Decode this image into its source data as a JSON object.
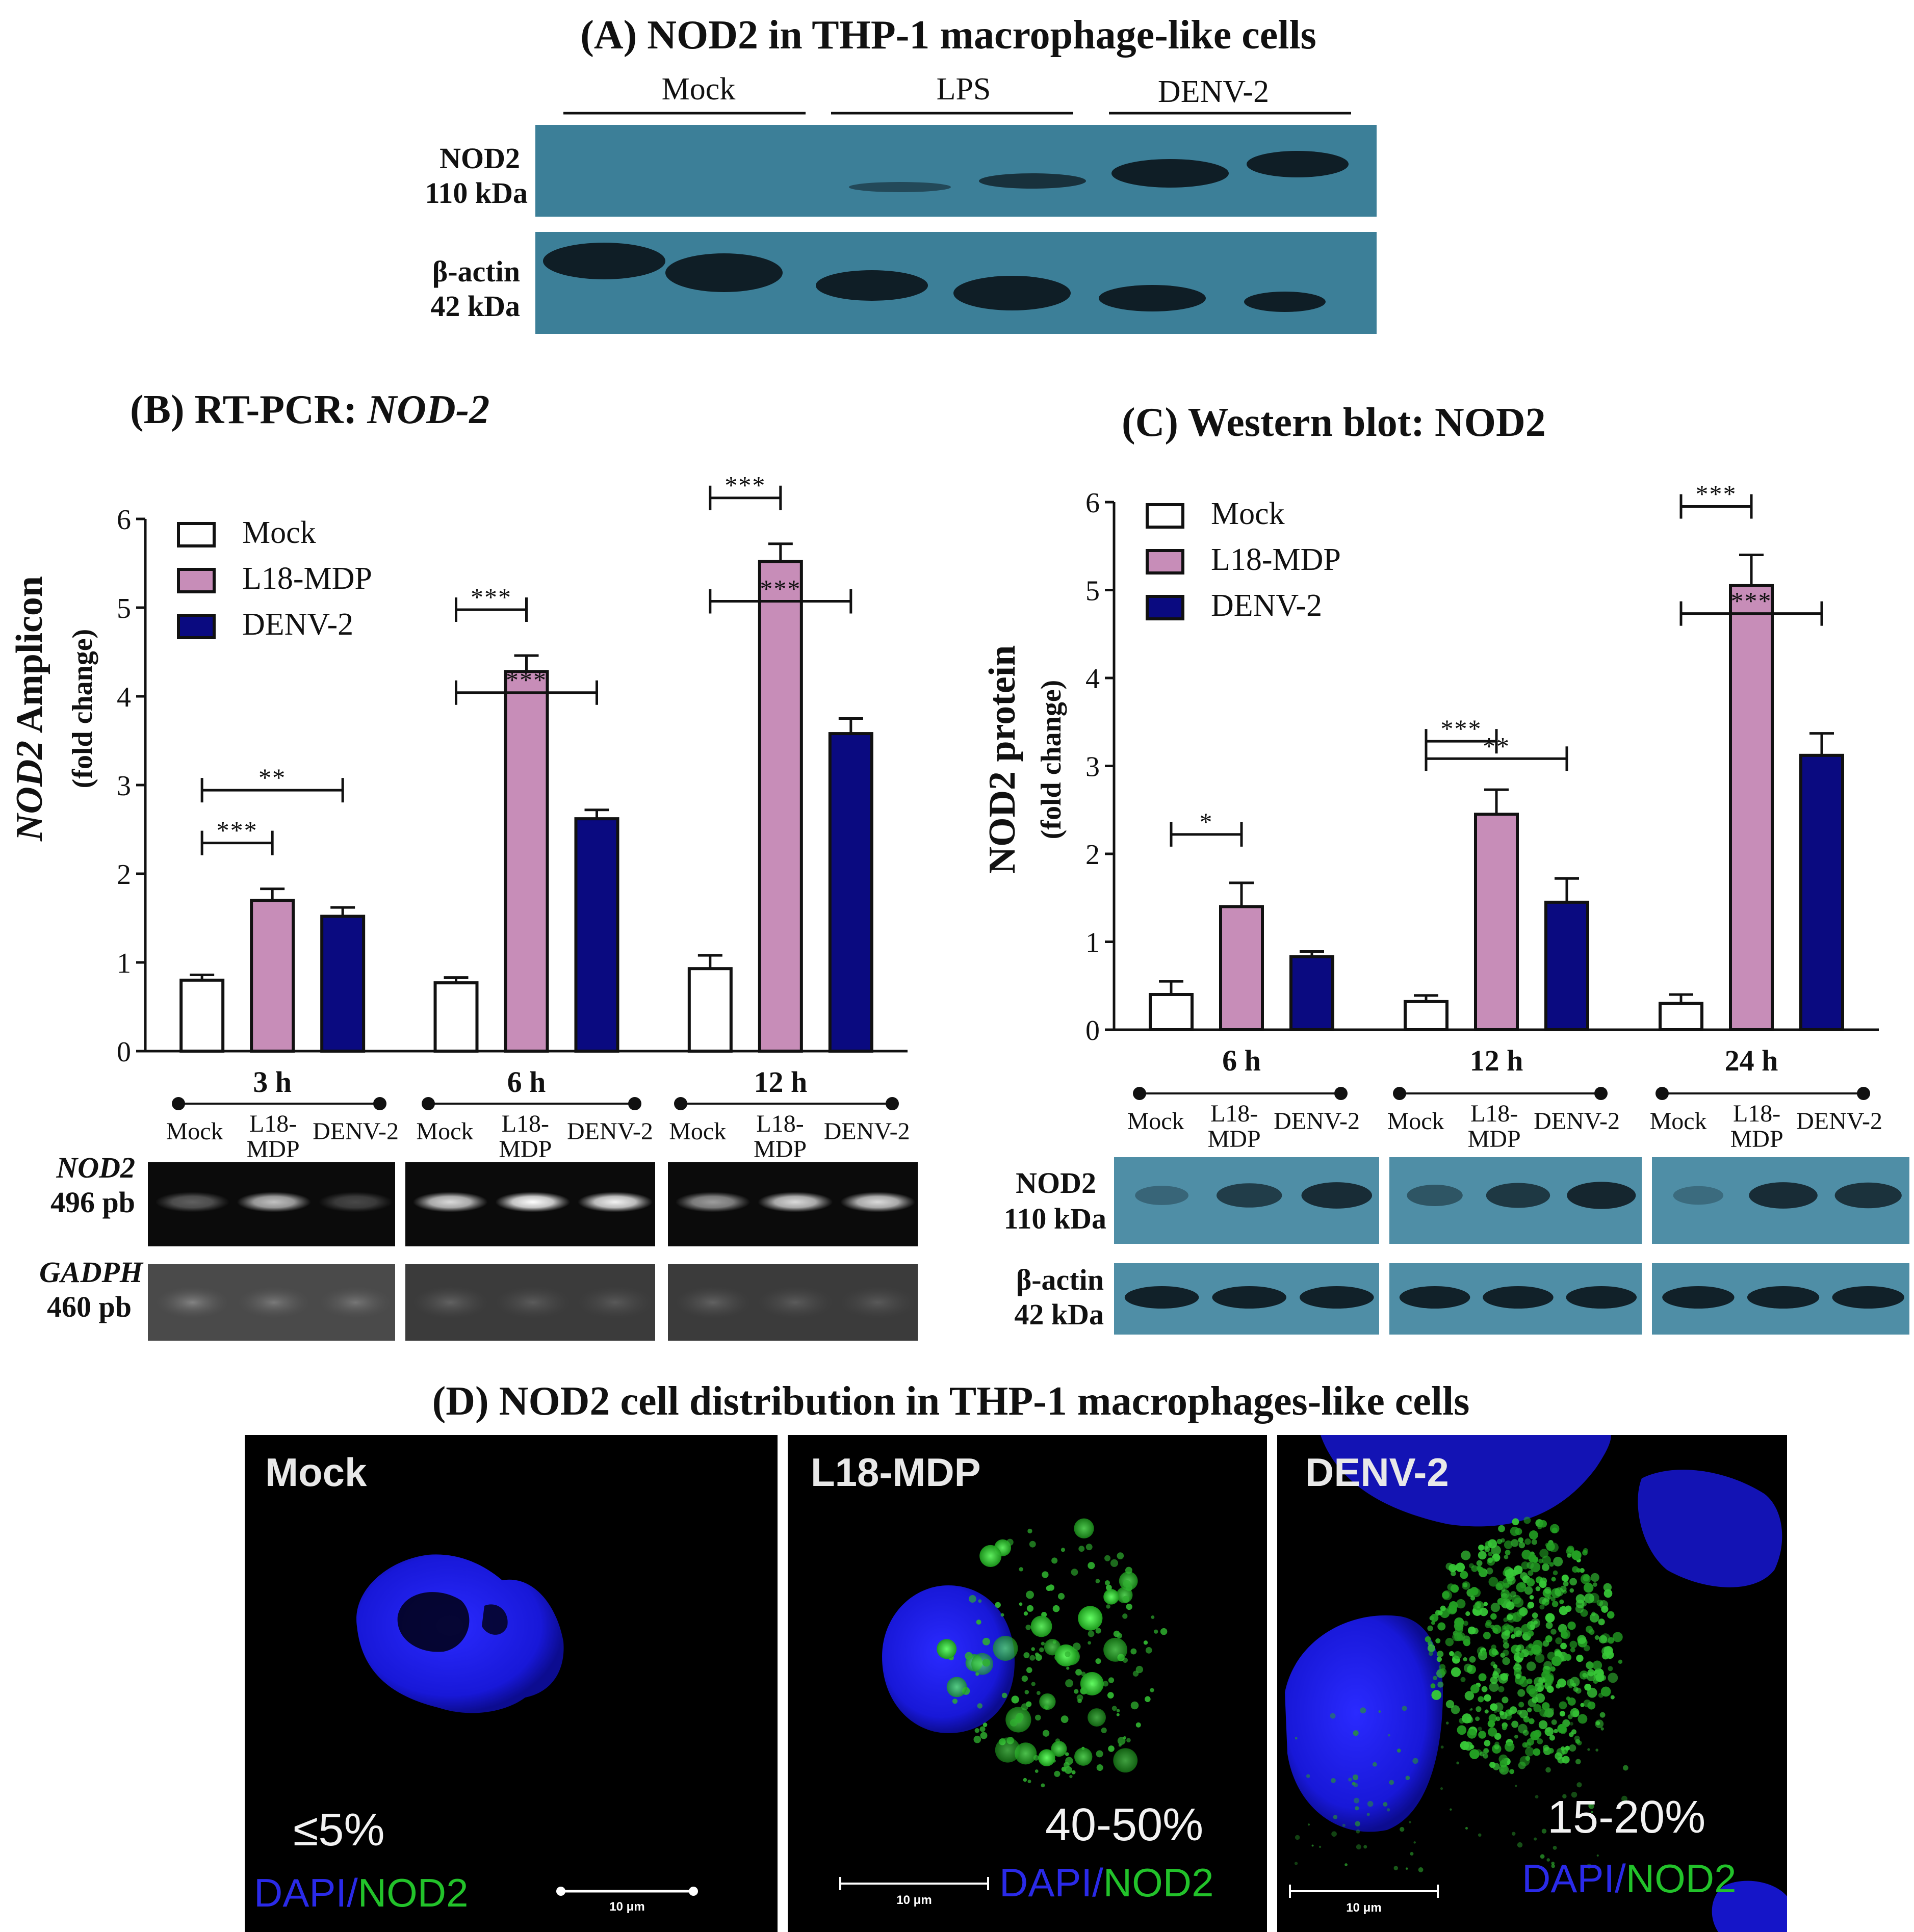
{
  "panel_a": {
    "title": "(A) NOD2 in THP-1  macrophage-like cells",
    "groups": [
      "Mock",
      "LPS",
      "DENV-2"
    ],
    "rows": [
      {
        "name": "NOD2",
        "size": "110 kDa"
      },
      {
        "name": "β-actin",
        "size": "42 kDa"
      }
    ]
  },
  "panel_b": {
    "title_prefix": "(B) RT-PCR: ",
    "title_italic": "NOD-2",
    "ylabel_italic": "NOD2",
    "ylabel_rest": " Amplicon",
    "ylabel_sub": "(fold change)",
    "gel_rows": [
      {
        "name": "NOD2",
        "size": "496 pb"
      },
      {
        "name": "GADPH",
        "size": "460 pb"
      }
    ],
    "lanes": [
      "Mock",
      "L18-",
      "MDP",
      "DENV-2"
    ]
  },
  "panel_c": {
    "title": "(C) Western blot: NOD2",
    "ylabel": "NOD2 protein",
    "ylabel_sub": "(fold change)",
    "blot_rows": [
      {
        "name": "NOD2",
        "size": "110 kDa"
      },
      {
        "name": "β-actin",
        "size": "42 kDa"
      }
    ],
    "lanes": [
      "Mock",
      "L18-",
      "MDP",
      "DENV-2"
    ]
  },
  "panel_d": {
    "title": "(D) NOD2 cell distribution in THP-1 macrophages-like cells",
    "images": [
      {
        "label": "Mock",
        "percent": "≤5%",
        "scale": "10 μm"
      },
      {
        "label": "L18-MDP",
        "percent": "40-50%",
        "scale": "10 μm"
      },
      {
        "label": "DENV-2",
        "percent": "15-20%",
        "scale": "10 μm"
      }
    ],
    "stain_dapi": "DAPI",
    "stain_sep": "/",
    "stain_nod2": "NOD2",
    "colors": {
      "dapi": "#1f1fe0",
      "nod2": "#1fbf2a"
    }
  },
  "chart_data": [
    {
      "type": "bar",
      "title": "(B) RT-PCR: NOD-2",
      "xlabel": "",
      "ylabel": "NOD2 Amplicon (fold change)",
      "ylim": [
        0,
        6
      ],
      "yticks": [
        0,
        1,
        2,
        3,
        4,
        5,
        6
      ],
      "categories": [
        "3 h",
        "6 h",
        "12 h"
      ],
      "series": [
        {
          "name": "Mock",
          "color": "#ffffff",
          "values": [
            0.8,
            0.77,
            0.93
          ],
          "errors": [
            0.06,
            0.06,
            0.15
          ]
        },
        {
          "name": "L18-MDP",
          "color": "#c78db8",
          "values": [
            1.7,
            4.28,
            5.52
          ],
          "errors": [
            0.13,
            0.18,
            0.2
          ]
        },
        {
          "name": "DENV-2",
          "color": "#0a0a80",
          "values": [
            1.52,
            2.62,
            3.58
          ],
          "errors": [
            0.1,
            0.1,
            0.17
          ]
        }
      ],
      "significance": [
        {
          "group": 0,
          "from": 0,
          "to": 1,
          "label": "***"
        },
        {
          "group": 0,
          "from": 0,
          "to": 2,
          "label": "**"
        },
        {
          "group": 1,
          "from": 0,
          "to": 1,
          "label": "***"
        },
        {
          "group": 1,
          "from": 0,
          "to": 2,
          "label": "***"
        },
        {
          "group": 2,
          "from": 0,
          "to": 1,
          "label": "***"
        },
        {
          "group": 2,
          "from": 0,
          "to": 2,
          "label": "***"
        }
      ],
      "legend": "top-left"
    },
    {
      "type": "bar",
      "title": "(C) Western blot: NOD2",
      "xlabel": "",
      "ylabel": "NOD2 protein (fold change)",
      "ylim": [
        0,
        6
      ],
      "yticks": [
        0,
        1,
        2,
        3,
        4,
        5,
        6
      ],
      "categories": [
        "6 h",
        "12 h",
        "24 h"
      ],
      "series": [
        {
          "name": "Mock",
          "color": "#ffffff",
          "values": [
            0.4,
            0.32,
            0.3
          ],
          "errors": [
            0.15,
            0.07,
            0.1
          ]
        },
        {
          "name": "L18-MDP",
          "color": "#c78db8",
          "values": [
            1.4,
            2.45,
            5.05
          ],
          "errors": [
            0.27,
            0.28,
            0.35
          ]
        },
        {
          "name": "DENV-2",
          "color": "#0a0a80",
          "values": [
            0.83,
            1.45,
            3.12
          ],
          "errors": [
            0.06,
            0.27,
            0.25
          ]
        }
      ],
      "significance": [
        {
          "group": 0,
          "from": 0,
          "to": 1,
          "label": "*"
        },
        {
          "group": 1,
          "from": 0,
          "to": 1,
          "label": "***"
        },
        {
          "group": 1,
          "from": 0,
          "to": 2,
          "label": "**"
        },
        {
          "group": 2,
          "from": 0,
          "to": 1,
          "label": "***"
        },
        {
          "group": 2,
          "from": 0,
          "to": 2,
          "label": "***"
        }
      ],
      "legend": "top-left"
    }
  ]
}
